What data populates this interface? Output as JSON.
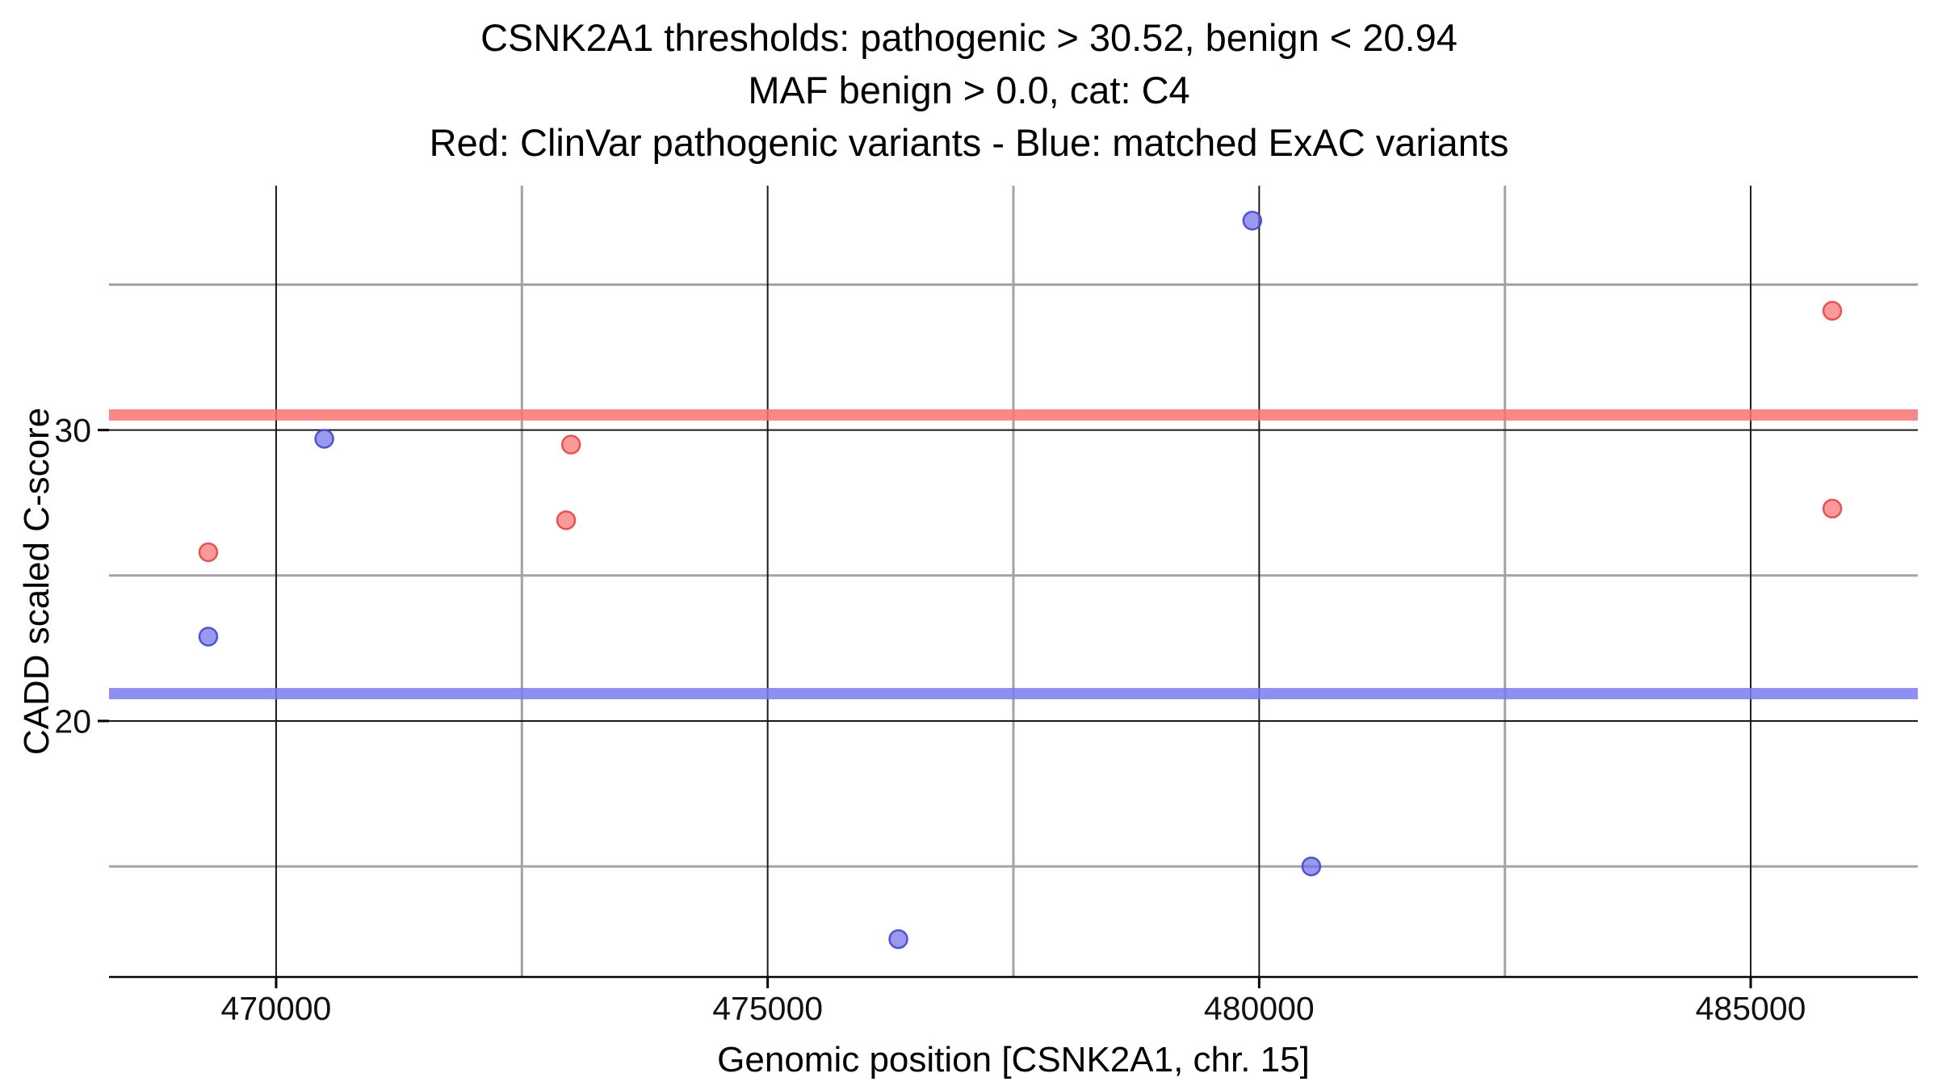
{
  "chart_data": {
    "type": "scatter",
    "title_lines": [
      "CSNK2A1 thresholds: pathogenic > 30.52, benign < 20.94",
      "MAF benign > 0.0, cat: C4",
      "Red: ClinVar pathogenic variants - Blue: matched ExAC variants"
    ],
    "xlabel": "Genomic position [CSNK2A1, chr. 15]",
    "ylabel": "CADD scaled C-score",
    "xlim": [
      468300,
      486700
    ],
    "ylim": [
      11.2,
      38.4
    ],
    "x_ticks": [
      {
        "value": 470000,
        "label": "470000"
      },
      {
        "value": 475000,
        "label": "475000"
      },
      {
        "value": 480000,
        "label": "480000"
      },
      {
        "value": 485000,
        "label": "485000"
      }
    ],
    "y_ticks": [
      {
        "value": 20,
        "label": "20"
      },
      {
        "value": 30,
        "label": "30"
      }
    ],
    "x_minor_gridlines": [
      472500,
      477500,
      482500
    ],
    "y_minor_gridlines": [
      15,
      25,
      35
    ],
    "thresholds": {
      "pathogenic": {
        "value": 30.52,
        "color": "#f87474"
      },
      "benign": {
        "value": 20.94,
        "color": "#7b7bf0"
      }
    },
    "series": [
      {
        "name": "ClinVar pathogenic variants",
        "color": "#fb6e6e",
        "stroke": "#e04848",
        "points": [
          {
            "x": 469310,
            "y": 25.8
          },
          {
            "x": 472950,
            "y": 26.9
          },
          {
            "x": 473000,
            "y": 29.5
          },
          {
            "x": 485830,
            "y": 34.1
          },
          {
            "x": 485830,
            "y": 27.3
          }
        ]
      },
      {
        "name": "matched ExAC variants",
        "color": "#6e6eea",
        "stroke": "#4646cc",
        "points": [
          {
            "x": 469310,
            "y": 22.9
          },
          {
            "x": 470490,
            "y": 29.7
          },
          {
            "x": 476330,
            "y": 12.5
          },
          {
            "x": 479930,
            "y": 37.2
          },
          {
            "x": 480530,
            "y": 15.0
          }
        ]
      }
    ],
    "colors": {
      "grid_major": "#1a1a1a",
      "grid_minor": "#a3a3a3",
      "axis": "#000000",
      "text": "#000000",
      "background": "#ffffff"
    },
    "legend_position": "none",
    "grid": true
  }
}
